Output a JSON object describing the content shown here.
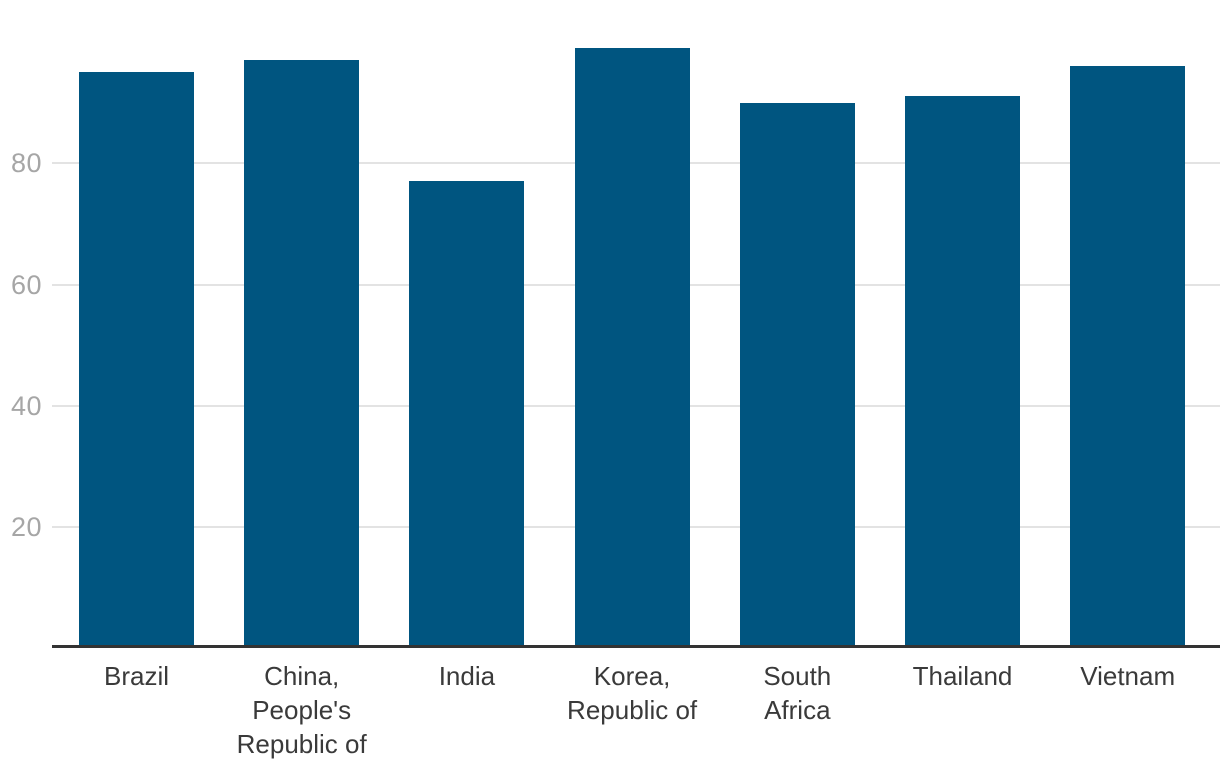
{
  "chart_data": {
    "type": "bar",
    "title": "",
    "xlabel": "",
    "ylabel": "",
    "categories": [
      "Brazil",
      "China, People's Republic of",
      "India",
      "Korea, Republic of",
      "South Africa",
      "Thailand",
      "Vietnam"
    ],
    "category_label_lines": [
      [
        "Brazil"
      ],
      [
        "China,",
        "People's",
        "Republic of"
      ],
      [
        "India"
      ],
      [
        "Korea,",
        "Republic of"
      ],
      [
        "South",
        "Africa"
      ],
      [
        "Thailand"
      ],
      [
        "Vietnam"
      ]
    ],
    "category_slugs": [
      "brazil",
      "china-peoples-republic-of",
      "india",
      "korea-republic-of",
      "south-africa",
      "thailand",
      "vietnam"
    ],
    "values": [
      95,
      97,
      77,
      99,
      90,
      91,
      96
    ],
    "ylim": [
      0,
      100
    ],
    "yticks": [
      20,
      40,
      60,
      80
    ],
    "grid": "horizontal-only",
    "legend": "none"
  },
  "colors": {
    "background": "#ffffff",
    "bar": "#005580",
    "gridline": "#e3e3e3",
    "axis_line": "#333333",
    "y_tick_label": "#a6a6a6",
    "x_tick_label": "#3a3a3a"
  }
}
